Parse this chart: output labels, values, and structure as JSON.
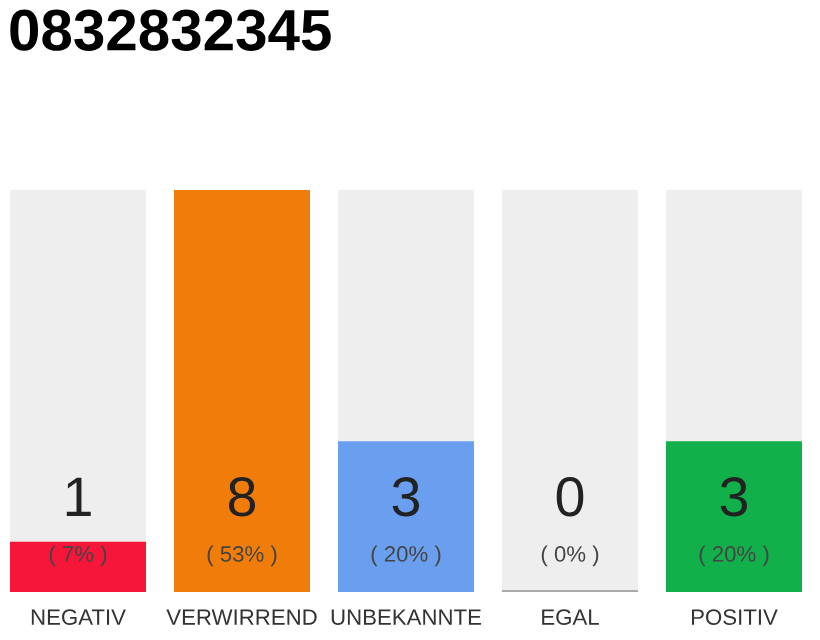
{
  "chart_data": {
    "type": "bar",
    "title": "0832832345",
    "categories": [
      "NEGATIV",
      "VERWIRREND",
      "UNBEKANNTE",
      "EGAL",
      "POSITIV"
    ],
    "values": [
      1,
      8,
      3,
      0,
      3
    ],
    "colors": [
      "#f5163a",
      "#f07d0a",
      "#6a9ff0",
      "#aaaaaa",
      "#12b04a"
    ],
    "data_labels": true,
    "annotations": [
      "( 7% )",
      "( 53% )",
      "( 20% )",
      "( 0% )",
      "( 20% )"
    ],
    "grid": false,
    "legend": false
  }
}
